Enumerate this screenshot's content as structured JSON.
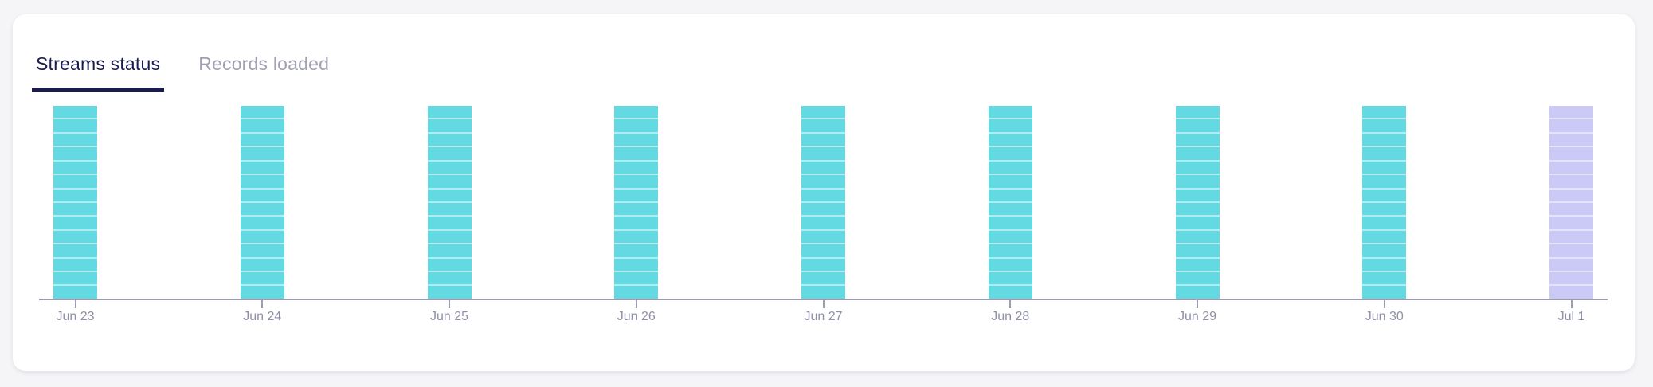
{
  "tabs": {
    "streams_status": {
      "label": "Streams status",
      "active": true
    },
    "records_loaded": {
      "label": "Records loaded",
      "active": false
    }
  },
  "chart_data": {
    "type": "bar",
    "subtype": "stacked-segmented-status-timeline",
    "title": "",
    "xlabel": "",
    "ylabel": "",
    "grid": false,
    "legend": "none",
    "y_axis_visible": false,
    "categories": [
      "Jun 23",
      "Jun 24",
      "Jun 25",
      "Jun 26",
      "Jun 27",
      "Jun 28",
      "Jun 29",
      "Jun 30",
      "Jul 1"
    ],
    "bars": [
      {
        "date": "Jun 23",
        "segments": 14,
        "variant": "teal",
        "color": "#63d9e1"
      },
      {
        "date": "Jun 24",
        "segments": 14,
        "variant": "teal",
        "color": "#63d9e1"
      },
      {
        "date": "Jun 25",
        "segments": 14,
        "variant": "teal",
        "color": "#63d9e1"
      },
      {
        "date": "Jun 26",
        "segments": 14,
        "variant": "teal",
        "color": "#63d9e1"
      },
      {
        "date": "Jun 27",
        "segments": 14,
        "variant": "teal",
        "color": "#63d9e1"
      },
      {
        "date": "Jun 28",
        "segments": 14,
        "variant": "teal",
        "color": "#63d9e1"
      },
      {
        "date": "Jun 29",
        "segments": 14,
        "variant": "teal",
        "color": "#63d9e1"
      },
      {
        "date": "Jun 30",
        "segments": 14,
        "variant": "teal",
        "color": "#63d9e1"
      },
      {
        "date": "Jul 1",
        "segments": 14,
        "variant": "lavender",
        "color": "#cbc9f6"
      }
    ],
    "colors": {
      "teal_bar": "#63d9e1",
      "lavender_bar": "#cbc9f6",
      "segment_separator": "rgba(255,255,255,0.5)",
      "axis": "#9a9cb0",
      "x_label": "#8d90a6",
      "active_tab": "#1b1b4f",
      "inactive_tab": "#a0a1b3"
    }
  }
}
